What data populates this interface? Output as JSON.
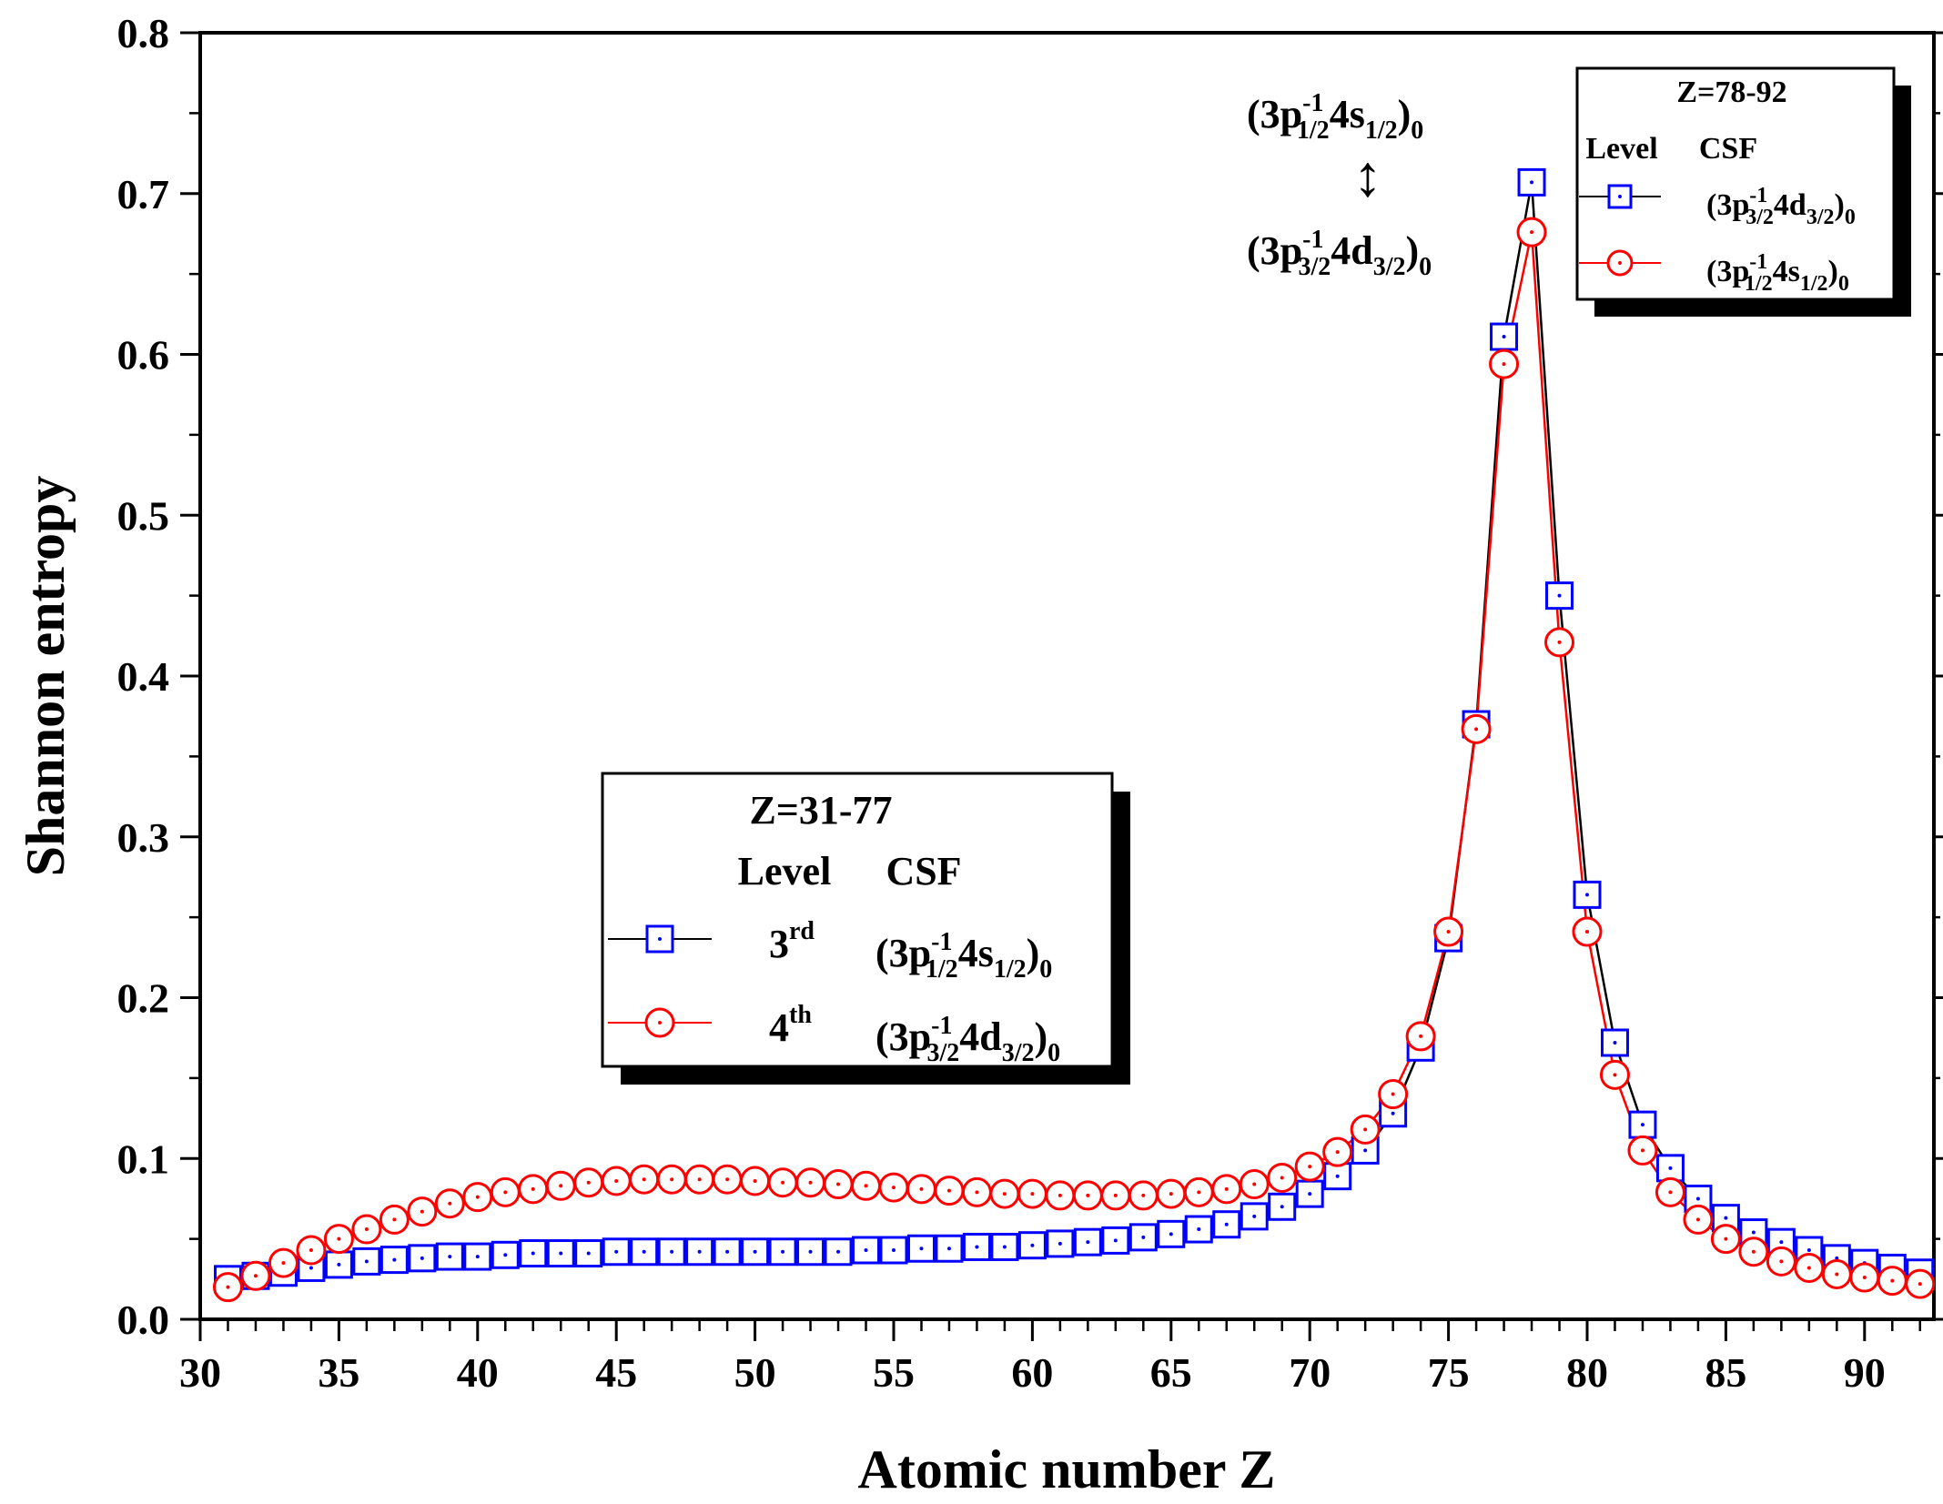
{
  "chart_data": {
    "type": "line",
    "xlabel": "Atomic number Z",
    "ylabel": "Shannon entropy",
    "xlim": [
      30,
      92.5
    ],
    "ylim": [
      0.0,
      0.8
    ],
    "x_ticks": [
      "30",
      "35",
      "40",
      "45",
      "50",
      "55",
      "60",
      "65",
      "70",
      "75",
      "80",
      "85",
      "90"
    ],
    "y_ticks": [
      "0.0",
      "0.1",
      "0.2",
      "0.3",
      "0.4",
      "0.5",
      "0.6",
      "0.7",
      "0.8"
    ],
    "x": [
      31,
      32,
      33,
      34,
      35,
      36,
      37,
      38,
      39,
      40,
      41,
      42,
      43,
      44,
      45,
      46,
      47,
      48,
      49,
      50,
      51,
      52,
      53,
      54,
      55,
      56,
      57,
      58,
      59,
      60,
      61,
      62,
      63,
      64,
      65,
      66,
      67,
      68,
      69,
      70,
      71,
      72,
      73,
      74,
      75,
      76,
      77,
      78,
      79,
      80,
      81,
      82,
      83,
      84,
      85,
      86,
      87,
      88,
      89,
      90,
      91,
      92
    ],
    "series": [
      {
        "name": "3rd level (squares)",
        "color": "#0000ff",
        "line_color": "#000000",
        "marker": "square",
        "values": [
          0.025,
          0.027,
          0.029,
          0.032,
          0.034,
          0.036,
          0.037,
          0.038,
          0.039,
          0.039,
          0.04,
          0.041,
          0.041,
          0.041,
          0.042,
          0.042,
          0.042,
          0.042,
          0.042,
          0.042,
          0.042,
          0.042,
          0.042,
          0.043,
          0.043,
          0.044,
          0.044,
          0.045,
          0.045,
          0.046,
          0.047,
          0.048,
          0.049,
          0.051,
          0.053,
          0.056,
          0.059,
          0.064,
          0.07,
          0.078,
          0.089,
          0.105,
          0.128,
          0.169,
          0.237,
          0.37,
          0.611,
          0.707,
          0.45,
          0.264,
          0.172,
          0.121,
          0.094,
          0.075,
          0.063,
          0.054,
          0.048,
          0.043,
          0.038,
          0.035,
          0.032,
          0.029
        ]
      },
      {
        "name": "4th level (circles)",
        "color": "#ff0000",
        "line_color": "#ff0000",
        "marker": "circle",
        "values": [
          0.02,
          0.027,
          0.035,
          0.043,
          0.05,
          0.056,
          0.062,
          0.067,
          0.072,
          0.076,
          0.079,
          0.081,
          0.083,
          0.085,
          0.086,
          0.087,
          0.087,
          0.087,
          0.087,
          0.086,
          0.085,
          0.085,
          0.084,
          0.083,
          0.082,
          0.081,
          0.08,
          0.079,
          0.078,
          0.078,
          0.077,
          0.077,
          0.077,
          0.077,
          0.078,
          0.079,
          0.081,
          0.084,
          0.088,
          0.095,
          0.104,
          0.118,
          0.14,
          0.176,
          0.241,
          0.367,
          0.594,
          0.676,
          0.421,
          0.241,
          0.152,
          0.105,
          0.079,
          0.062,
          0.05,
          0.042,
          0.036,
          0.032,
          0.028,
          0.026,
          0.024,
          0.022
        ]
      }
    ],
    "annotation": {
      "top": {
        "pre": "(3p",
        "sup": "-1",
        "sub1": "1/2",
        "mid": "4s",
        "sub2": "1/2",
        "post": ")",
        "sub3": "0"
      },
      "arrow": "↕",
      "bottom": {
        "pre": "(3p",
        "sup": "-1",
        "sub1": "3/2",
        "mid": "4d",
        "sub2": "3/2",
        "post": ")",
        "sub3": "0"
      }
    },
    "legend_left": {
      "title": "Z=31-77",
      "headers": [
        "Level",
        "CSF"
      ],
      "rows": [
        {
          "level": "3",
          "level_sup": "rd",
          "csf": {
            "pre": "(3p",
            "sup": "-1",
            "sub1": "1/2",
            "mid": "4s",
            "sub2": "1/2",
            "post": ")",
            "sub3": "0"
          }
        },
        {
          "level": "4",
          "level_sup": "th",
          "csf": {
            "pre": "(3p",
            "sup": "-1",
            "sub1": "3/2",
            "mid": "4d",
            "sub2": "3/2",
            "post": ")",
            "sub3": "0"
          }
        }
      ]
    },
    "legend_right": {
      "title": "Z=78-92",
      "headers": [
        "Level",
        "CSF"
      ],
      "rows": [
        {
          "csf": {
            "pre": "(3p",
            "sup": "-1",
            "sub1": "3/2",
            "mid": "4d",
            "sub2": "3/2",
            "post": ")",
            "sub3": "0"
          }
        },
        {
          "csf": {
            "pre": "(3p",
            "sup": "-1",
            "sub1": "1/2",
            "mid": "4s",
            "sub2": "1/2",
            "post": ")",
            "sub3": "0"
          }
        }
      ]
    }
  }
}
